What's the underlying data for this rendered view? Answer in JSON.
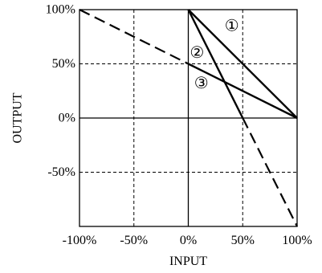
{
  "chart_data": {
    "type": "line",
    "xlabel": "INPUT",
    "ylabel": "OUTPUT",
    "xlim": [
      -100,
      100
    ],
    "ylim": [
      -100,
      100
    ],
    "grid": "dashed",
    "x_ticks": [
      {
        "value": -100,
        "label": "-100%"
      },
      {
        "value": -50,
        "label": "-50%"
      },
      {
        "value": 0,
        "label": "0%"
      },
      {
        "value": 50,
        "label": "50%"
      },
      {
        "value": 100,
        "label": "100%"
      }
    ],
    "y_ticks": [
      {
        "value": 100,
        "label": "100%"
      },
      {
        "value": 50,
        "label": "50%"
      },
      {
        "value": 0,
        "label": "0%"
      },
      {
        "value": -50,
        "label": "-50%"
      }
    ],
    "series": [
      {
        "marker": "①",
        "style": "solid",
        "points": [
          [
            0,
            100
          ],
          [
            100,
            0
          ]
        ],
        "label_at": [
          40,
          85
        ]
      },
      {
        "marker": "②",
        "style": "solid",
        "points": [
          [
            0,
            100
          ],
          [
            50,
            0
          ]
        ],
        "label_at": [
          8,
          60
        ]
      },
      {
        "marker": "③",
        "style": "solid",
        "points": [
          [
            0,
            50
          ],
          [
            100,
            0
          ]
        ],
        "label_at": [
          12,
          32
        ]
      },
      {
        "marker": "",
        "style": "dashed",
        "points": [
          [
            -100,
            100
          ],
          [
            0,
            50
          ]
        ]
      },
      {
        "marker": "",
        "style": "dashed",
        "points": [
          [
            50,
            0
          ],
          [
            100,
            -100
          ]
        ]
      }
    ],
    "colors": {
      "line": "#000000",
      "grid": "#000000",
      "background": "#ffffff"
    }
  }
}
